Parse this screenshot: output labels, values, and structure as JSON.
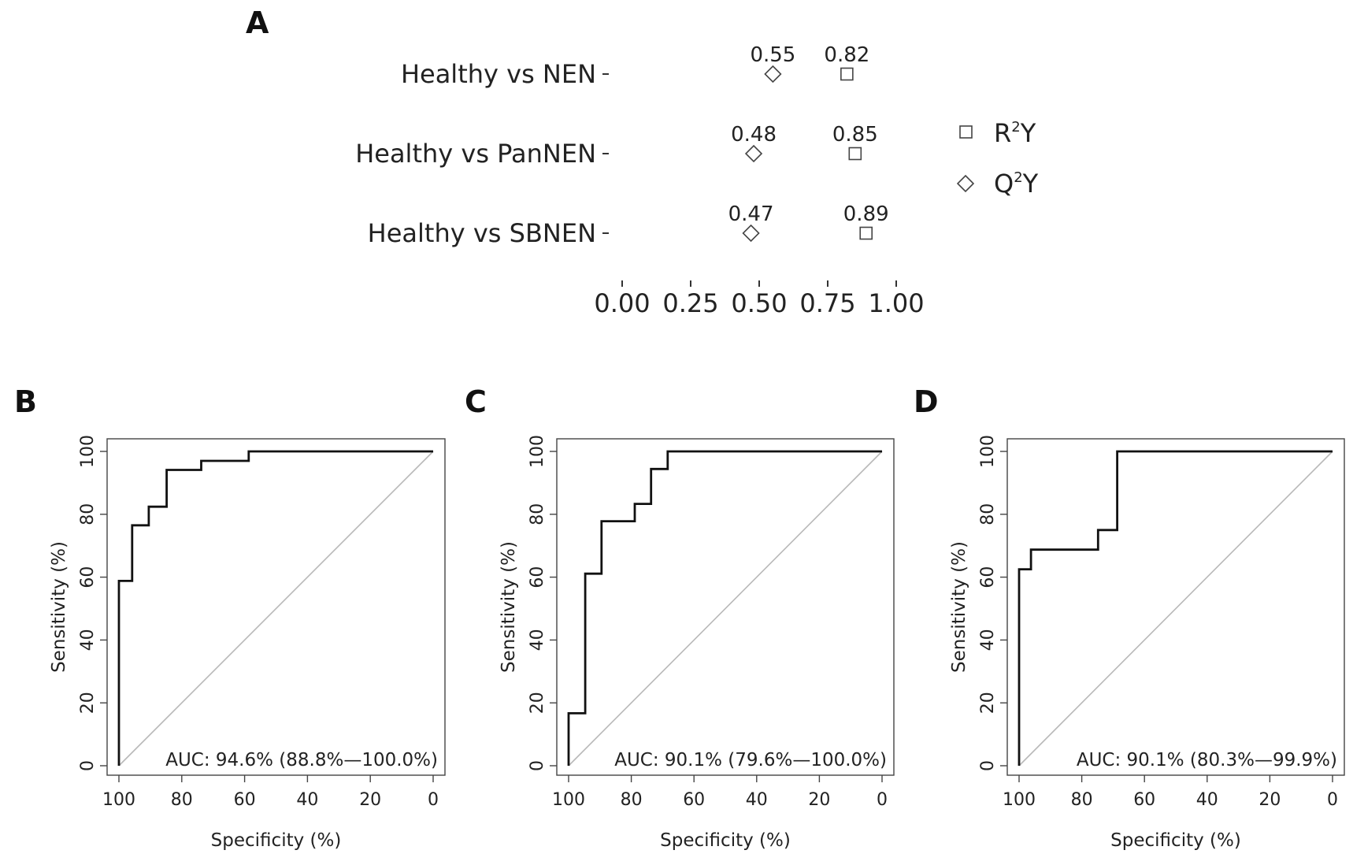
{
  "chart_data": [
    {
      "panel": "A",
      "type": "scatter",
      "categories": [
        "Healthy vs NEN",
        "Healthy vs PanNEN",
        "Healthy vs SBNEN"
      ],
      "series": [
        {
          "name": "R²Y",
          "marker": "square",
          "values": [
            0.82,
            0.85,
            0.89
          ]
        },
        {
          "name": "Q²Y",
          "marker": "diamond",
          "values": [
            0.55,
            0.48,
            0.47
          ]
        }
      ],
      "value_labels": {
        "r2y": [
          "0.82",
          "0.85",
          "0.89"
        ],
        "q2y": [
          "0.55",
          "0.48",
          "0.47"
        ]
      },
      "xlim": [
        0,
        1
      ],
      "xticks": [
        0,
        0.25,
        0.5,
        0.75,
        1
      ],
      "xtick_labels": [
        "0.00",
        "0.25",
        "0.50",
        "0.75",
        "1.00"
      ],
      "legend": {
        "r2y_base": "R",
        "r2y_sup": "2",
        "r2y_end": "Y",
        "q2y_base": "Q",
        "q2y_sup": "2",
        "q2y_end": "Y",
        "position": "right"
      }
    },
    {
      "panel": "B",
      "type": "line",
      "xlabel": "Specificity (%)",
      "ylabel": "Sensitivity (%)",
      "xlim": [
        100,
        0
      ],
      "ylim": [
        0,
        100
      ],
      "xticks": [
        100,
        80,
        60,
        40,
        20,
        0
      ],
      "yticks": [
        0,
        20,
        40,
        60,
        80,
        100
      ],
      "auc_text": "AUC: 94.6% (88.8%—100.0%)",
      "roc": {
        "specificity": [
          100,
          100,
          95.8,
          95.8,
          90.5,
          90.5,
          84.8,
          84.8,
          73.8,
          73.8,
          58.7,
          58.7,
          0
        ],
        "sensitivity": [
          0,
          58.8,
          58.8,
          76.5,
          76.5,
          82.4,
          82.4,
          94.1,
          94.1,
          97.0,
          97.0,
          100,
          100
        ]
      }
    },
    {
      "panel": "C",
      "type": "line",
      "xlabel": "Specificity (%)",
      "ylabel": "Sensitivity (%)",
      "xlim": [
        100,
        0
      ],
      "ylim": [
        0,
        100
      ],
      "xticks": [
        100,
        80,
        60,
        40,
        20,
        0
      ],
      "yticks": [
        0,
        20,
        40,
        60,
        80,
        100
      ],
      "auc_text": "AUC: 90.1% (79.6%—100.0%)",
      "roc": {
        "specificity": [
          100,
          100,
          94.7,
          94.7,
          89.5,
          89.5,
          78.9,
          78.9,
          73.7,
          73.7,
          68.4,
          68.4,
          0
        ],
        "sensitivity": [
          0,
          16.7,
          16.7,
          61.1,
          61.1,
          77.8,
          77.8,
          83.3,
          83.3,
          94.4,
          94.4,
          100,
          100
        ]
      }
    },
    {
      "panel": "D",
      "type": "line",
      "xlabel": "Specificity (%)",
      "ylabel": "Sensitivity (%)",
      "xlim": [
        100,
        0
      ],
      "ylim": [
        0,
        100
      ],
      "xticks": [
        100,
        80,
        60,
        40,
        20,
        0
      ],
      "yticks": [
        0,
        20,
        40,
        60,
        80,
        100
      ],
      "auc_text": "AUC: 90.1% (80.3%—99.9%)",
      "roc": {
        "specificity": [
          100,
          100,
          96.2,
          96.2,
          74.8,
          74.8,
          68.7,
          68.7,
          0
        ],
        "sensitivity": [
          0,
          62.5,
          62.5,
          68.75,
          68.75,
          75.0,
          75.0,
          100,
          100
        ]
      }
    }
  ]
}
